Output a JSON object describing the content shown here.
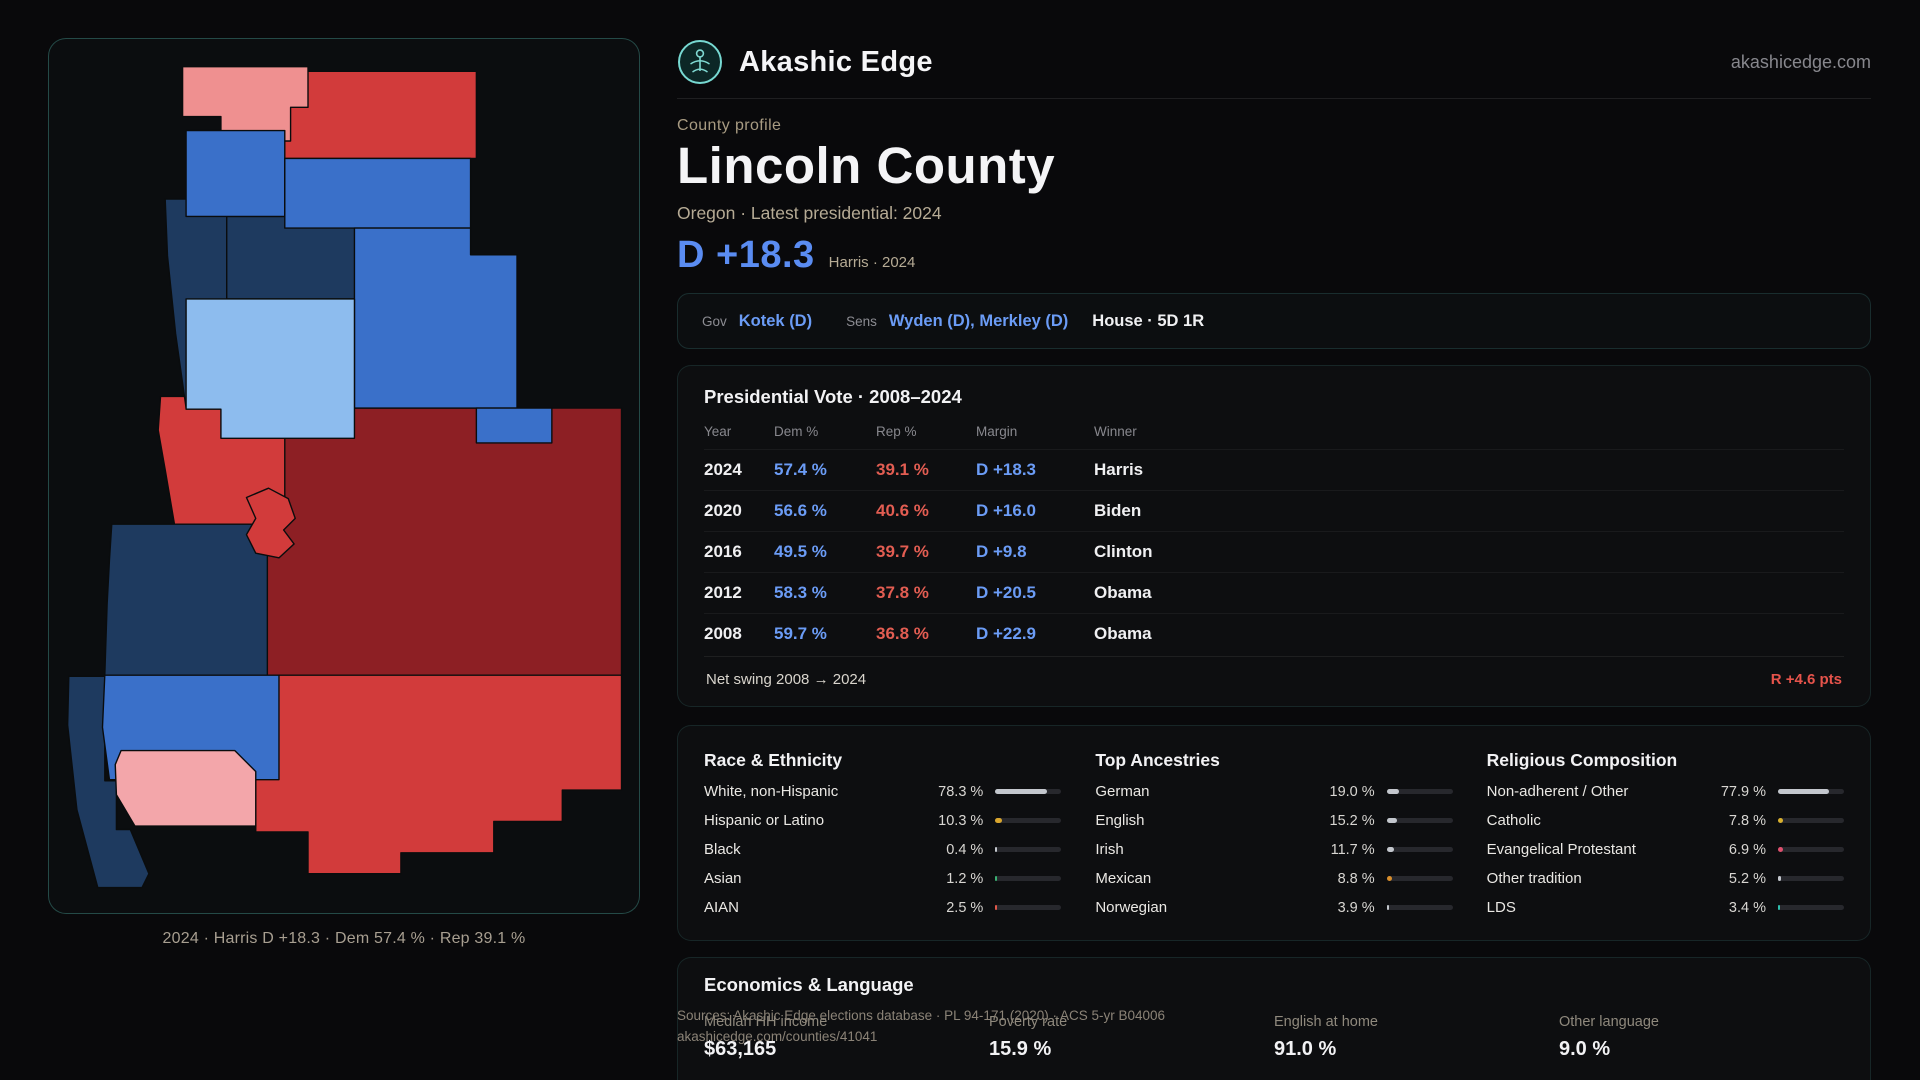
{
  "brand": {
    "name": "Akashic Edge",
    "domain": "akashicedge.com"
  },
  "map": {
    "caption": "2024 · Harris D +18.3 · Dem 57.4 % · Rep 39.1 %",
    "palette": {
      "dem_dark": "#1e3a5f",
      "dem_mid": "#3a70c9",
      "dem_light": "#8dbcee",
      "rep_bright": "#d23b3b",
      "rep_dark": "#8d1f24",
      "salmon": "#ef9090",
      "pink": "#f3a6aa"
    }
  },
  "profile": {
    "kicker": "County profile",
    "title": "Lincoln County",
    "subtitle": "Oregon · Latest presidential: 2024",
    "margin_big": "D +18.3",
    "margin_note": "Harris · 2024"
  },
  "officials": {
    "gov_label": "Gov",
    "gov_value": "Kotek (D)",
    "sens_label": "Sens",
    "sens_value": "Wyden (D), Merkley (D)",
    "house_value": "House · 5D 1R"
  },
  "pres_vote": {
    "title": "Presidential Vote · 2008–2024",
    "columns": [
      "Year",
      "Dem %",
      "Rep %",
      "Margin",
      "Winner"
    ],
    "rows": [
      {
        "year": "2024",
        "dem": "57.4 %",
        "rep": "39.1 %",
        "margin": "D +18.3",
        "winner": "Harris"
      },
      {
        "year": "2020",
        "dem": "56.6 %",
        "rep": "40.6 %",
        "margin": "D +16.0",
        "winner": "Biden"
      },
      {
        "year": "2016",
        "dem": "49.5 %",
        "rep": "39.7 %",
        "margin": "D +9.8",
        "winner": "Clinton"
      },
      {
        "year": "2012",
        "dem": "58.3 %",
        "rep": "37.8 %",
        "margin": "D +20.5",
        "winner": "Obama"
      },
      {
        "year": "2008",
        "dem": "59.7 %",
        "rep": "36.8 %",
        "margin": "D +22.9",
        "winner": "Obama"
      }
    ],
    "net_swing_label": "Net swing 2008 → 2024",
    "net_swing_value": "R +4.6 pts"
  },
  "demographics": {
    "race": {
      "title": "Race & Ethnicity",
      "rows": [
        {
          "label": "White, non-Hispanic",
          "value": "78.3 %",
          "pct": 78.3,
          "color": "#c3c7cd"
        },
        {
          "label": "Hispanic or Latino",
          "value": "10.3 %",
          "pct": 10.3,
          "color": "#d9a62e"
        },
        {
          "label": "Black",
          "value": "0.4 %",
          "pct": 0.4,
          "color": "#c3c7cd"
        },
        {
          "label": "Asian",
          "value": "1.2 %",
          "pct": 1.2,
          "color": "#3bb273"
        },
        {
          "label": "AIAN",
          "value": "2.5 %",
          "pct": 2.5,
          "color": "#e0584a"
        }
      ]
    },
    "ancestries": {
      "title": "Top Ancestries",
      "rows": [
        {
          "label": "German",
          "value": "19.0 %",
          "pct": 19.0,
          "color": "#c3c7cd"
        },
        {
          "label": "English",
          "value": "15.2 %",
          "pct": 15.2,
          "color": "#c3c7cd"
        },
        {
          "label": "Irish",
          "value": "11.7 %",
          "pct": 11.7,
          "color": "#c3c7cd"
        },
        {
          "label": "Mexican",
          "value": "8.8 %",
          "pct": 8.8,
          "color": "#d98e2b"
        },
        {
          "label": "Norwegian",
          "value": "3.9 %",
          "pct": 3.9,
          "color": "#c3c7cd"
        }
      ]
    },
    "religion": {
      "title": "Religious Composition",
      "rows": [
        {
          "label": "Non-adherent / Other",
          "value": "77.9 %",
          "pct": 77.9,
          "color": "#c3c7cd"
        },
        {
          "label": "Catholic",
          "value": "7.8 %",
          "pct": 7.8,
          "color": "#d9b02e"
        },
        {
          "label": "Evangelical Protestant",
          "value": "6.9 %",
          "pct": 6.9,
          "color": "#e0506e"
        },
        {
          "label": "Other tradition",
          "value": "5.2 %",
          "pct": 5.2,
          "color": "#c3c7cd"
        },
        {
          "label": "LDS",
          "value": "3.4 %",
          "pct": 3.4,
          "color": "#2fbfae"
        }
      ]
    }
  },
  "economics": {
    "title": "Economics & Language",
    "stats": [
      {
        "label": "Median HH income",
        "value": "$63,165"
      },
      {
        "label": "Poverty rate",
        "value": "15.9 %"
      },
      {
        "label": "English at home",
        "value": "91.0 %"
      },
      {
        "label": "Other language",
        "value": "9.0 %"
      }
    ]
  },
  "footer": {
    "sources": "Sources: Akashic Edge elections database · PL 94-171 (2020) · ACS 5-yr B04006",
    "permalink": "akashicedge.com/counties/41041"
  }
}
